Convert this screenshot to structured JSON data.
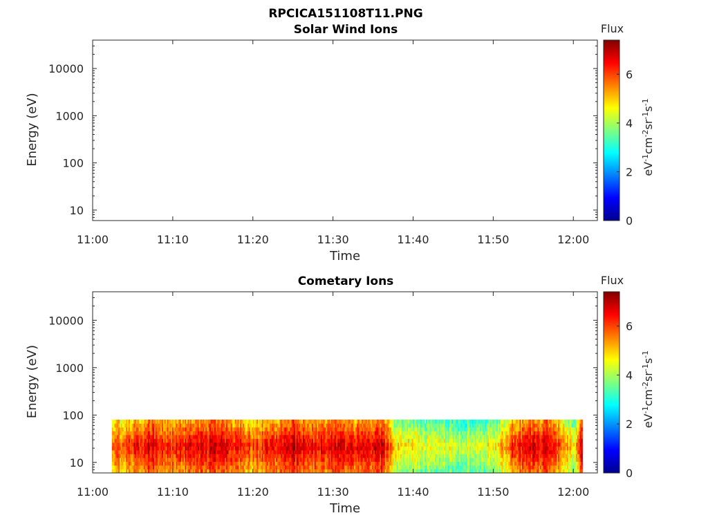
{
  "figure_title": "RPCICA151108T11.PNG",
  "chart_data": [
    {
      "type": "heatmap",
      "title": "Solar Wind Ions",
      "xlabel": "Time",
      "ylabel": "Energy (eV)",
      "y_scale": "log",
      "x_range": [
        "11:00",
        "12:03"
      ],
      "y_range": [
        6,
        40000
      ],
      "x_ticks": [
        "11:00",
        "11:10",
        "11:20",
        "11:30",
        "11:40",
        "11:50",
        "12:00"
      ],
      "y_ticks": [
        "10",
        "100",
        "1000",
        "10000"
      ],
      "colorbar": {
        "title": "Flux",
        "label": "eV-1cm-2sr-1s-1",
        "range": [
          0,
          7.4
        ],
        "ticks": [
          "0",
          "2",
          "4",
          "6"
        ],
        "colormap": "jet"
      },
      "data": "empty"
    },
    {
      "type": "heatmap",
      "title": "Cometary Ions",
      "xlabel": "Time",
      "ylabel": "Energy (eV)",
      "y_scale": "log",
      "x_range": [
        "11:00",
        "12:03"
      ],
      "y_range": [
        6,
        40000
      ],
      "x_ticks": [
        "11:00",
        "11:10",
        "11:20",
        "11:30",
        "11:40",
        "11:50",
        "12:00"
      ],
      "y_ticks": [
        "10",
        "100",
        "1000",
        "10000"
      ],
      "colorbar": {
        "title": "Flux",
        "label": "eV-1cm-2sr-1s-1",
        "range": [
          0,
          7.4
        ],
        "ticks": [
          "0",
          "2",
          "4",
          "6"
        ],
        "colormap": "jet"
      },
      "data_time_range": [
        "11:02",
        "12:01"
      ],
      "data_energy_range_eV": [
        6,
        80
      ],
      "intensity_profile": [
        {
          "t": "11:02",
          "flux": 5.8
        },
        {
          "t": "11:05",
          "flux": 6.3
        },
        {
          "t": "11:07",
          "flux": 6.8
        },
        {
          "t": "11:09",
          "flux": 6.2
        },
        {
          "t": "11:12",
          "flux": 6.6
        },
        {
          "t": "11:16",
          "flux": 7.0
        },
        {
          "t": "11:19",
          "flux": 6.1
        },
        {
          "t": "11:22",
          "flux": 6.4
        },
        {
          "t": "11:25",
          "flux": 7.0
        },
        {
          "t": "11:28",
          "flux": 6.5
        },
        {
          "t": "11:30",
          "flux": 6.9
        },
        {
          "t": "11:33",
          "flux": 6.6
        },
        {
          "t": "11:36",
          "flux": 6.8
        },
        {
          "t": "11:38",
          "flux": 4.9
        },
        {
          "t": "11:42",
          "flux": 4.6
        },
        {
          "t": "11:46",
          "flux": 4.4
        },
        {
          "t": "11:50",
          "flux": 4.7
        },
        {
          "t": "11:53",
          "flux": 6.6
        },
        {
          "t": "11:57",
          "flux": 6.8
        },
        {
          "t": "12:00",
          "flux": 4.8
        },
        {
          "t": "12:01",
          "flux": 6.9
        }
      ]
    }
  ]
}
